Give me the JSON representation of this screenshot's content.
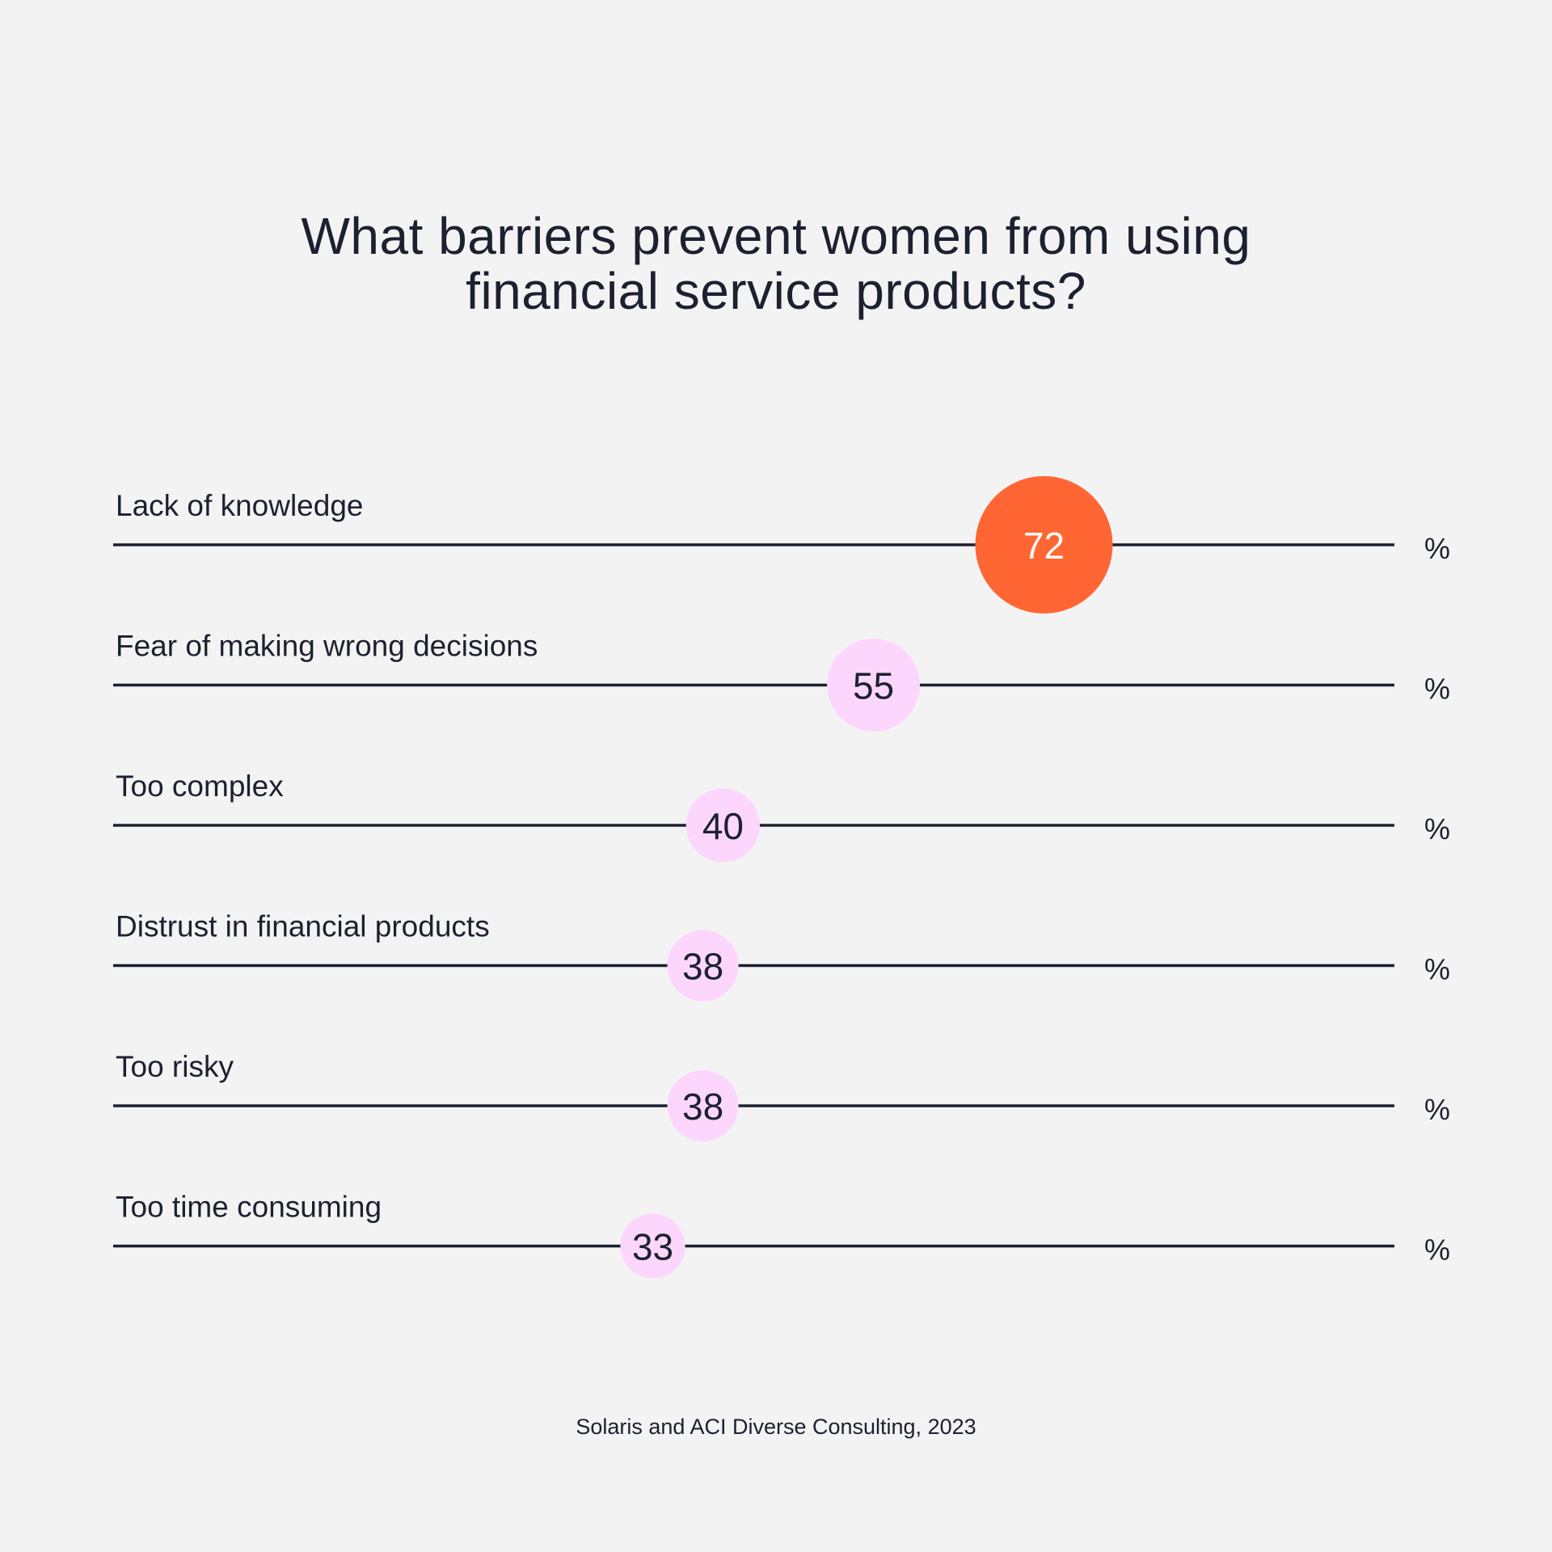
{
  "chart_data": {
    "type": "dot",
    "title_lines": [
      "What barriers prevent women from using",
      "financial service products?"
    ],
    "categories": [
      "Lack of knowledge",
      "Fear of making wrong decisions",
      "Too complex",
      "Distrust in financial products",
      "Too risky",
      "Too time consuming"
    ],
    "values": [
      72,
      55,
      40,
      38,
      38,
      33
    ],
    "unit": "%",
    "highlight_index": 0,
    "source": "Solaris and ACI Diverse Consulting, 2023"
  },
  "colors": {
    "background": "#f3f3f3",
    "text": "#1c2130",
    "line": "#1c2130",
    "highlight": "#ff6633",
    "highlight_text": "#ffffff",
    "bubble": "#fdd6fd",
    "bubble_text": "#1c2130"
  }
}
